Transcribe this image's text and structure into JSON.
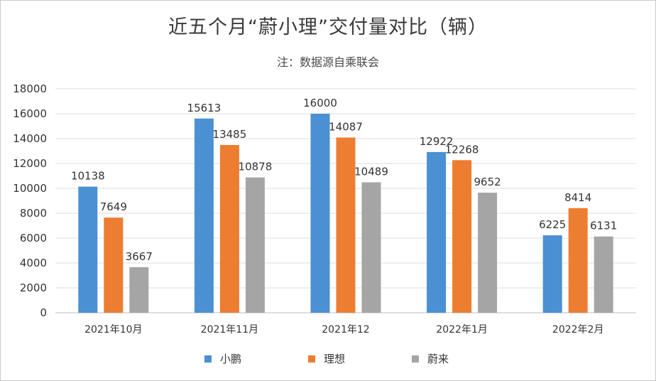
{
  "chart_data": {
    "type": "bar",
    "title": "近五个月“蔚小理”交付量对比（辆）",
    "subtitle": "注：数据源自乘联会",
    "categories": [
      "2021年10月",
      "2021年11月",
      "2021年12",
      "2022年1月",
      "2022年2月"
    ],
    "series": [
      {
        "name": "小鹏",
        "color": "#4a90d2",
        "values": [
          10138,
          15613,
          16000,
          12922,
          6225
        ]
      },
      {
        "name": "理想",
        "color": "#ed7d31",
        "values": [
          7649,
          13485,
          14087,
          12268,
          8414
        ]
      },
      {
        "name": "蔚来",
        "color": "#a5a5a5",
        "values": [
          3667,
          10878,
          10489,
          9652,
          6131
        ]
      }
    ],
    "ylim": [
      0,
      18000
    ],
    "yticks": [
      "0",
      "2000",
      "4000",
      "6000",
      "8000",
      "10000",
      "12000",
      "14000",
      "16000",
      "18000"
    ],
    "grid": true,
    "legend": "bottom"
  }
}
